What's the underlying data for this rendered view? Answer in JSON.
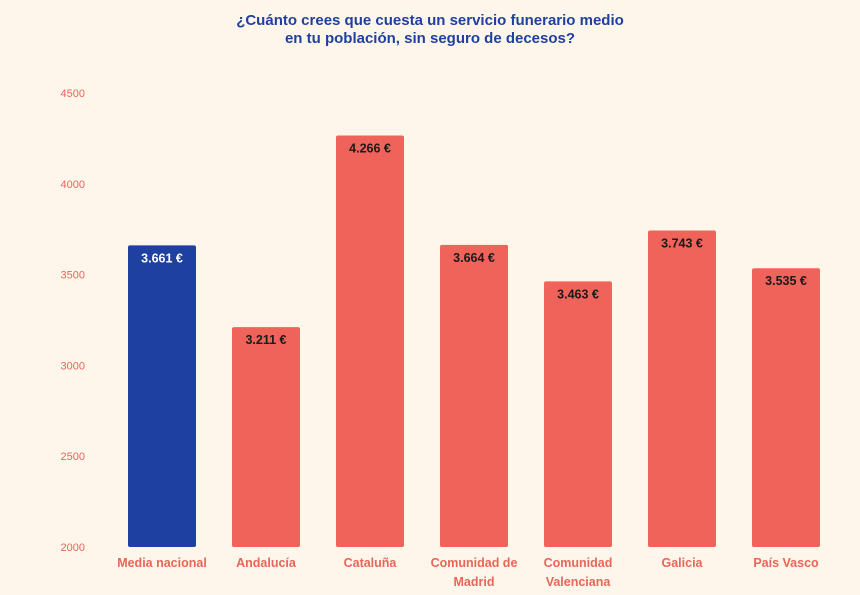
{
  "chart_data": {
    "type": "bar",
    "title_lines": [
      "¿Cuánto crees que cuesta un servicio funerario medio",
      "en tu población, sin seguro de decesos?"
    ],
    "xlabel": "",
    "ylabel": "",
    "ylim": [
      2000,
      4500
    ],
    "yticks": [
      2000,
      2500,
      3000,
      3500,
      4000,
      4500
    ],
    "grid": false,
    "categories": [
      [
        "Media nacional"
      ],
      [
        "Andalucía"
      ],
      [
        "Cataluña"
      ],
      [
        "Comunidad de",
        "Madrid"
      ],
      [
        "Comunidad",
        "Valenciana"
      ],
      [
        "Galicia"
      ],
      [
        "País Vasco"
      ]
    ],
    "values": [
      3661,
      3211,
      4266,
      3664,
      3463,
      3743,
      3535
    ],
    "value_labels": [
      "3.661 €",
      "3.211 €",
      "4.266 €",
      "3.664 €",
      "3.463 €",
      "3.743 €",
      "3.535 €"
    ],
    "colors": {
      "highlight": "#1E40A0",
      "bar": "#F0635A",
      "highlight_label": "#FFFFFF",
      "bar_label": "#1A1A1A"
    },
    "highlight_index": 0
  }
}
